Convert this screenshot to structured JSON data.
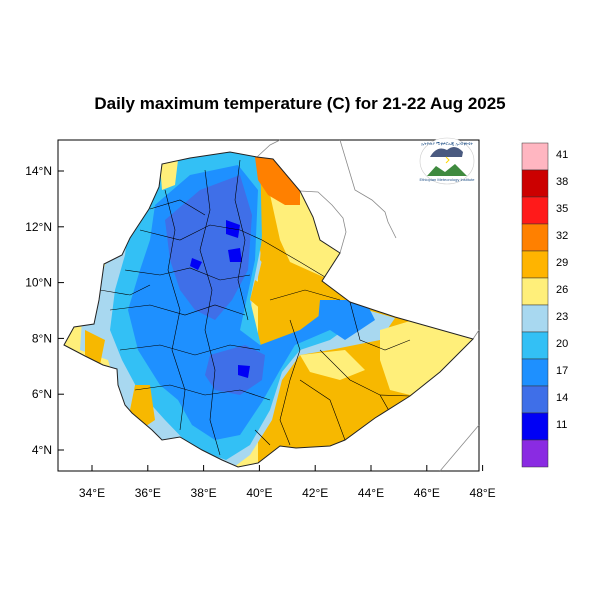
{
  "title": "Daily maximum temperature (C) for 21-22 Aug 2025",
  "axes": {
    "x_ticks": [
      "34°E",
      "36°E",
      "38°E",
      "40°E",
      "42°E",
      "44°E",
      "46°E",
      "48°E"
    ],
    "y_ticks": [
      "14°N",
      "12°N",
      "10°N",
      "8°N",
      "6°N",
      "4°N"
    ],
    "xlim": [
      33.0,
      48.2
    ],
    "ylim": [
      3.2,
      15.0
    ]
  },
  "colorbar": {
    "labels": [
      "41",
      "38",
      "35",
      "32",
      "29",
      "26",
      "23",
      "20",
      "17",
      "14",
      "11"
    ],
    "colors": [
      "#ffb6c1",
      "#cc0000",
      "#ff1a1a",
      "#ff8000",
      "#ffb400",
      "#ffef7a",
      "#a8d8f0",
      "#33c0f5",
      "#1e90ff",
      "#3f6fe8",
      "#0000f5",
      "#8a2be2"
    ]
  },
  "logo": {
    "text_top": "ኢትዮጵያ ሚቲዎሮሎጂ ኢንስቲትዩት",
    "text_bottom": "Ethiopian Meteorology Institute"
  }
}
